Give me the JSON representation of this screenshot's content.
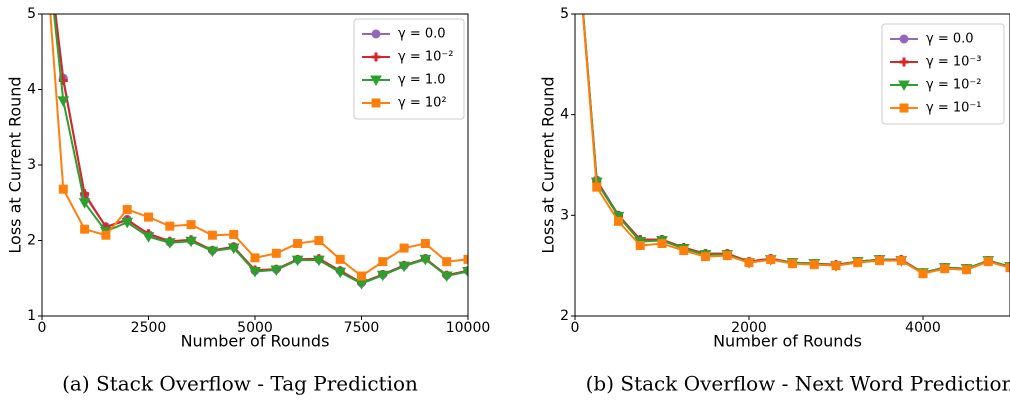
{
  "chart_data": [
    {
      "type": "line",
      "caption": "(a) Stack Overflow - Tag Prediction",
      "xlabel": "Number of Rounds",
      "ylabel": "Loss at Current Round",
      "x": [
        0,
        500,
        1000,
        1500,
        2000,
        2500,
        3000,
        3500,
        4000,
        4500,
        5000,
        5500,
        6000,
        6500,
        7000,
        7500,
        8000,
        8500,
        9000,
        9500,
        10000
      ],
      "xlim": [
        0,
        10000
      ],
      "xticks": [
        0,
        2500,
        5000,
        7500,
        10000
      ],
      "ylim": [
        1,
        5
      ],
      "yticks": [
        1,
        2,
        3,
        4,
        5
      ],
      "legend": "upper right",
      "series": [
        {
          "name": "γ = 0.0",
          "color": "#9467bd",
          "marker": "circle",
          "values": [
            6.5,
            4.15,
            2.6,
            2.18,
            2.28,
            2.08,
            1.98,
            2.0,
            1.87,
            1.92,
            1.6,
            1.62,
            1.75,
            1.75,
            1.6,
            1.44,
            1.55,
            1.67,
            1.76,
            1.54,
            1.6
          ]
        },
        {
          "name": "γ = 10⁻²",
          "color": "#d62728",
          "marker": "plus",
          "values": [
            6.5,
            4.12,
            2.62,
            2.18,
            2.27,
            2.09,
            1.99,
            2.01,
            1.87,
            1.91,
            1.61,
            1.62,
            1.75,
            1.76,
            1.6,
            1.44,
            1.55,
            1.67,
            1.76,
            1.54,
            1.6
          ]
        },
        {
          "name": "γ = 1.0",
          "color": "#2ca02c",
          "marker": "triangle",
          "values": [
            6.5,
            3.85,
            2.5,
            2.12,
            2.24,
            2.05,
            1.97,
            1.99,
            1.86,
            1.9,
            1.59,
            1.61,
            1.74,
            1.74,
            1.58,
            1.43,
            1.54,
            1.66,
            1.75,
            1.53,
            1.59
          ]
        },
        {
          "name": "γ = 10²",
          "color": "#ff7f0e",
          "marker": "square",
          "values": [
            6.5,
            2.68,
            2.15,
            2.07,
            2.41,
            2.31,
            2.19,
            2.21,
            2.07,
            2.08,
            1.77,
            1.83,
            1.96,
            2.0,
            1.75,
            1.53,
            1.72,
            1.9,
            1.96,
            1.72,
            1.75
          ]
        }
      ]
    },
    {
      "type": "line",
      "caption": "(b) Stack Overflow - Next Word Prediction",
      "xlabel": "Number of Rounds",
      "ylabel": "Loss at Current Round",
      "x": [
        0,
        250,
        500,
        750,
        1000,
        1250,
        1500,
        1750,
        2000,
        2250,
        2500,
        2750,
        3000,
        3250,
        3500,
        3750,
        4000,
        4250,
        4500,
        4750,
        5000
      ],
      "xlim": [
        0,
        5000
      ],
      "xticks": [
        0,
        2000,
        4000
      ],
      "ylim": [
        2,
        5
      ],
      "yticks": [
        2,
        3,
        4,
        5
      ],
      "legend": "upper right",
      "series": [
        {
          "name": "γ = 0.0",
          "color": "#9467bd",
          "marker": "circle",
          "values": [
            6,
            3.35,
            3.0,
            2.75,
            2.76,
            2.67,
            2.62,
            2.62,
            2.54,
            2.57,
            2.53,
            2.52,
            2.5,
            2.54,
            2.56,
            2.56,
            2.43,
            2.48,
            2.47,
            2.55,
            2.49
          ]
        },
        {
          "name": "γ = 10⁻³",
          "color": "#d62728",
          "marker": "plus",
          "values": [
            6,
            3.34,
            3.0,
            2.76,
            2.76,
            2.68,
            2.62,
            2.62,
            2.54,
            2.57,
            2.53,
            2.52,
            2.51,
            2.54,
            2.56,
            2.56,
            2.43,
            2.48,
            2.47,
            2.55,
            2.49
          ]
        },
        {
          "name": "γ = 10⁻²",
          "color": "#2ca02c",
          "marker": "triangle",
          "values": [
            6,
            3.33,
            2.99,
            2.74,
            2.75,
            2.67,
            2.61,
            2.61,
            2.53,
            2.56,
            2.53,
            2.52,
            2.5,
            2.54,
            2.56,
            2.55,
            2.43,
            2.48,
            2.47,
            2.55,
            2.49
          ]
        },
        {
          "name": "γ = 10⁻¹",
          "color": "#ff7f0e",
          "marker": "square",
          "values": [
            6,
            3.28,
            2.94,
            2.7,
            2.72,
            2.65,
            2.59,
            2.6,
            2.53,
            2.56,
            2.52,
            2.51,
            2.5,
            2.53,
            2.55,
            2.55,
            2.42,
            2.47,
            2.46,
            2.54,
            2.48
          ]
        }
      ]
    }
  ]
}
